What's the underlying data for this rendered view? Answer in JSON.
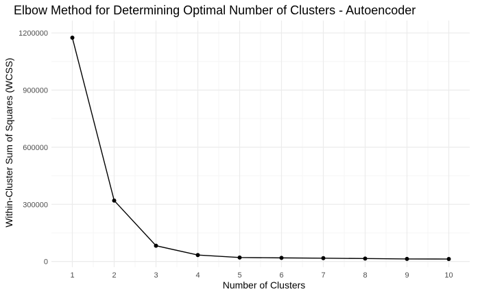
{
  "chart_data": {
    "type": "line",
    "title": "Elbow Method for Determining Optimal Number of Clusters - Autoencoder",
    "xlabel": "Number of Clusters",
    "ylabel": "Within-Cluster Sum of Squares (WCSS)",
    "x": [
      1,
      2,
      3,
      4,
      5,
      6,
      7,
      8,
      9,
      10
    ],
    "series": [
      {
        "values": [
          1175000,
          320000,
          83000,
          34000,
          21000,
          19000,
          17500,
          15500,
          13500,
          13000
        ]
      }
    ],
    "xlim": [
      0.5,
      10.5
    ],
    "ylim": [
      -30000,
      1265000
    ],
    "xticks": [
      1,
      2,
      3,
      4,
      5,
      6,
      7,
      8,
      9,
      10
    ],
    "xtick_labels": [
      "1",
      "2",
      "3",
      "4",
      "5",
      "6",
      "7",
      "8",
      "9",
      "10"
    ],
    "yticks": [
      0,
      300000,
      600000,
      900000,
      1200000
    ],
    "ytick_labels": [
      "0",
      "300000",
      "600000",
      "900000",
      "1200000"
    ],
    "grid": true,
    "legend": "none",
    "colors": {
      "line": "#000000",
      "point": "#000000",
      "grid_major": "#ebebeb",
      "grid_minor": "#f5f5f5"
    }
  }
}
